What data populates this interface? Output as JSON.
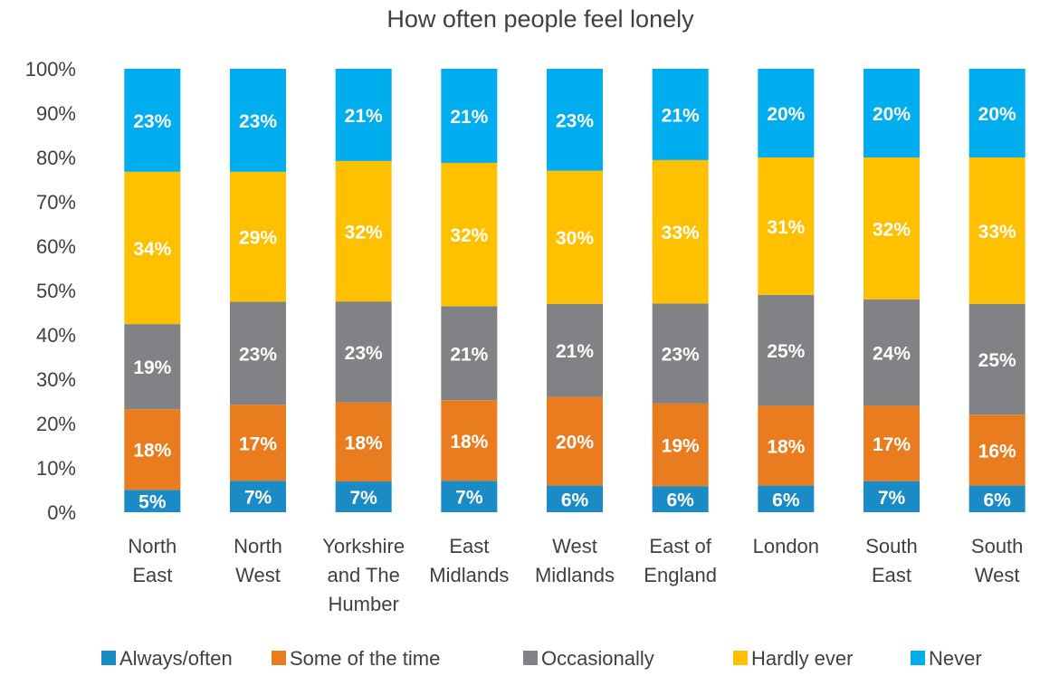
{
  "chart_data": {
    "type": "bar",
    "stacked": true,
    "percent_stacked": true,
    "title": "How often people feel lonely",
    "categories": [
      [
        "North",
        "East"
      ],
      [
        "North",
        "West"
      ],
      [
        "Yorkshire",
        "and The",
        "Humber"
      ],
      [
        "East",
        "Midlands"
      ],
      [
        "West",
        "Midlands"
      ],
      [
        "East of",
        "England"
      ],
      [
        "London"
      ],
      [
        "South",
        "East"
      ],
      [
        "South",
        "West"
      ]
    ],
    "series": [
      {
        "name": "Always/often",
        "color": "#1a8bc4",
        "values": [
          5,
          7,
          7,
          7,
          6,
          6,
          6,
          7,
          6
        ]
      },
      {
        "name": "Some of the time",
        "color": "#e87c1e",
        "values": [
          18,
          17,
          18,
          18,
          20,
          19,
          18,
          17,
          16
        ]
      },
      {
        "name": "Occasionally",
        "color": "#808285",
        "values": [
          19,
          23,
          23,
          21,
          21,
          23,
          25,
          24,
          25
        ]
      },
      {
        "name": "Hardly ever",
        "color": "#ffc000",
        "values": [
          34,
          29,
          32,
          32,
          30,
          33,
          31,
          32,
          33
        ]
      },
      {
        "name": "Never",
        "color": "#00adef",
        "values": [
          23,
          23,
          21,
          21,
          23,
          21,
          20,
          20,
          20
        ]
      }
    ],
    "y_ticks": [
      "0%",
      "10%",
      "20%",
      "30%",
      "40%",
      "50%",
      "60%",
      "70%",
      "80%",
      "90%",
      "100%"
    ],
    "ylim": [
      0,
      100
    ],
    "grid": false,
    "legend_position": "bottom"
  }
}
